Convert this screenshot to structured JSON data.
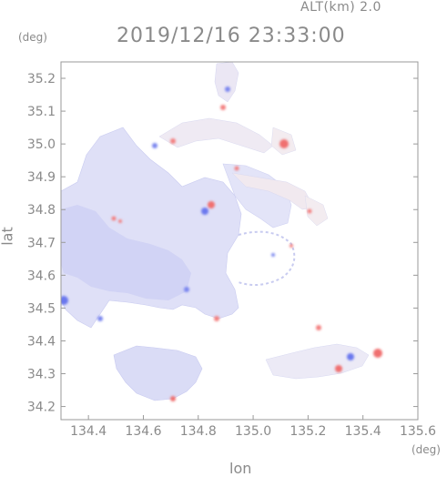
{
  "header": {
    "altitude": "ALT(km)  2.0",
    "datetime": "2019/12/16  23:33:00"
  },
  "axes": {
    "lat_unit": "(deg)",
    "lon_unit": "(deg)",
    "xlabel": "lon",
    "ylabel": "lat",
    "xlim": [
      134.3,
      135.6
    ],
    "ylim": [
      34.16,
      35.25
    ],
    "xticks": [
      "134.4",
      "134.6",
      "134.8",
      "135.0",
      "135.2",
      "135.4",
      "135.6"
    ],
    "yticks": [
      "35.2",
      "35.1",
      "35.0",
      "34.9",
      "34.8",
      "34.7",
      "34.6",
      "34.5",
      "34.4",
      "34.3",
      "34.2"
    ]
  },
  "colors": {
    "frame": "#9a9a9a",
    "negative": "#5b6cf0",
    "positive": "#f06060",
    "echo_base": "#dcdcf6"
  }
}
